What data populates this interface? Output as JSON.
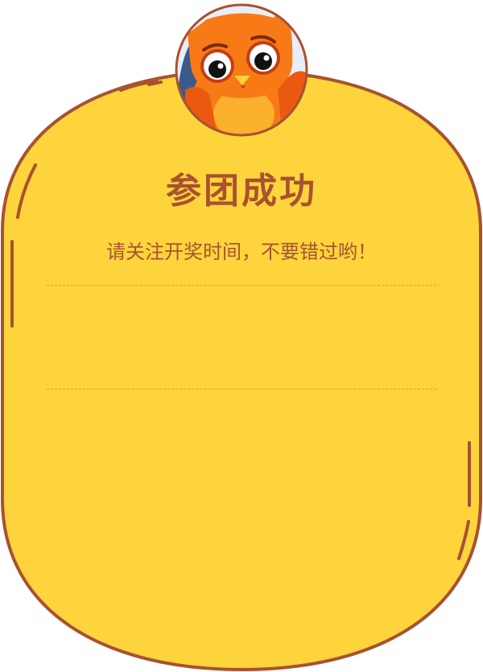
{
  "dialog": {
    "title": "参团成功",
    "subtitle": "请关注开奖时间，不要错过哟！"
  },
  "colors": {
    "card_fill": "#fdd43c",
    "card_border": "#a85230",
    "text": "#a85230",
    "divider": "#d9a03c",
    "mascot_orange": "#f77a17"
  },
  "icons": {
    "mascot": "owl-mascot-icon"
  }
}
